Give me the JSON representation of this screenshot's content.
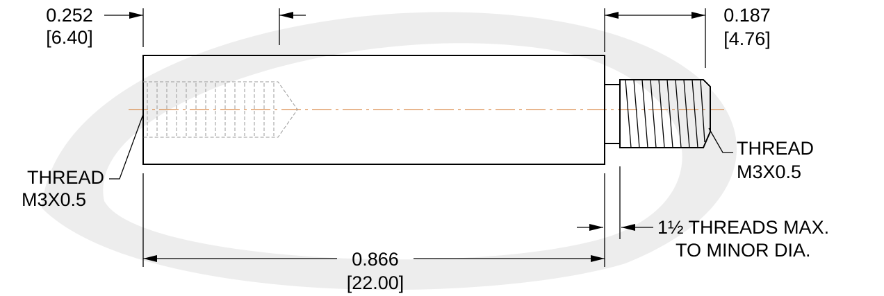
{
  "dimensions": [
    {
      "inch": "0.252",
      "mm": "[6.40]"
    },
    {
      "inch": "0.187",
      "mm": "[4.76]"
    },
    {
      "inch": "0.866",
      "mm": "[22.00]"
    }
  ],
  "threads": [
    {
      "label": "THREAD",
      "spec": "M3X0.5"
    },
    {
      "label": "THREAD",
      "spec": "M3X0.5"
    }
  ],
  "note": [
    "1½ THREADS MAX.",
    "TO MINOR DIA."
  ]
}
